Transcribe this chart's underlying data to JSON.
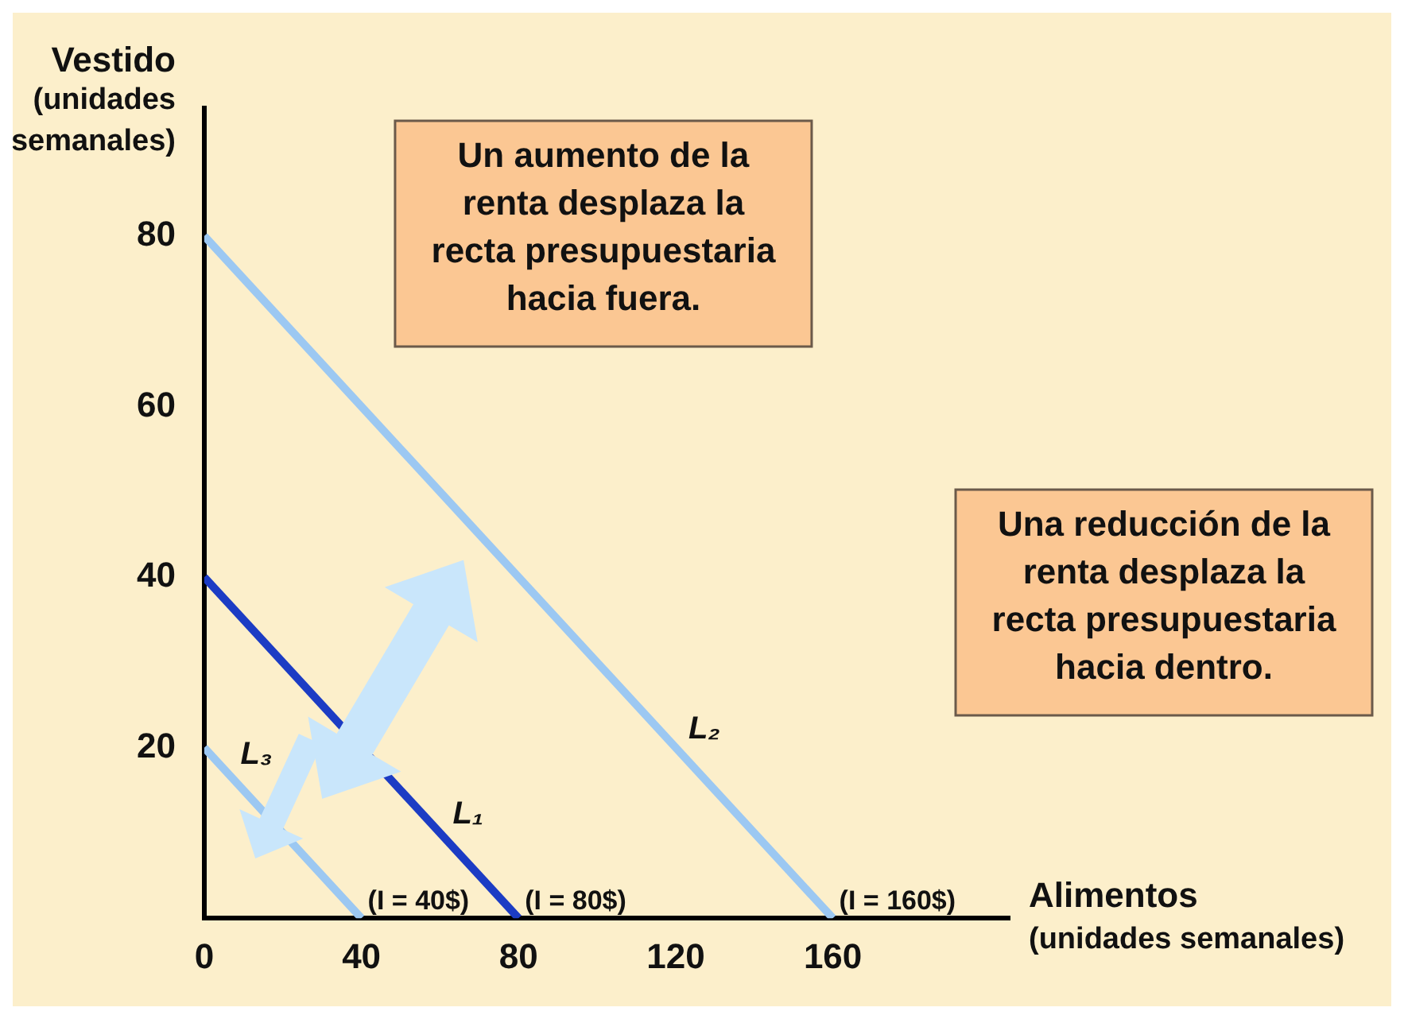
{
  "chart_data": {
    "type": "line",
    "xlabel": "Alimentos (unidades semanales)",
    "ylabel": "Vestido (unidades semanales)",
    "series": [
      {
        "name": "L₃",
        "x": [
          0,
          40
        ],
        "values": [
          20,
          0
        ],
        "color": "#9cc8f2"
      },
      {
        "name": "L₁",
        "x": [
          0,
          80
        ],
        "values": [
          40,
          0
        ],
        "color": "#1c3cc4"
      },
      {
        "name": "L₂",
        "x": [
          0,
          160
        ],
        "values": [
          80,
          0
        ],
        "color": "#9cc8f2"
      }
    ],
    "annotations": [
      {
        "text": "(I = 40$)",
        "x": 40,
        "y": 0
      },
      {
        "text": "(I = 80$)",
        "x": 80,
        "y": 0
      },
      {
        "text": "(I = 160$)",
        "x": 160,
        "y": 0
      },
      "Un aumento de la renta desplaza la recta presupuestaria hacia fuera.",
      "Una reducción de la renta desplaza la recta presupuestaria hacia dentro."
    ],
    "xlim": [
      0,
      205
    ],
    "ylim": [
      0,
      95
    ],
    "xticks": [
      0,
      40,
      80,
      120,
      160
    ],
    "yticks": [
      20,
      40,
      60,
      80
    ],
    "grid": false,
    "legend": false,
    "marker": "none",
    "line_style": "solid"
  }
}
